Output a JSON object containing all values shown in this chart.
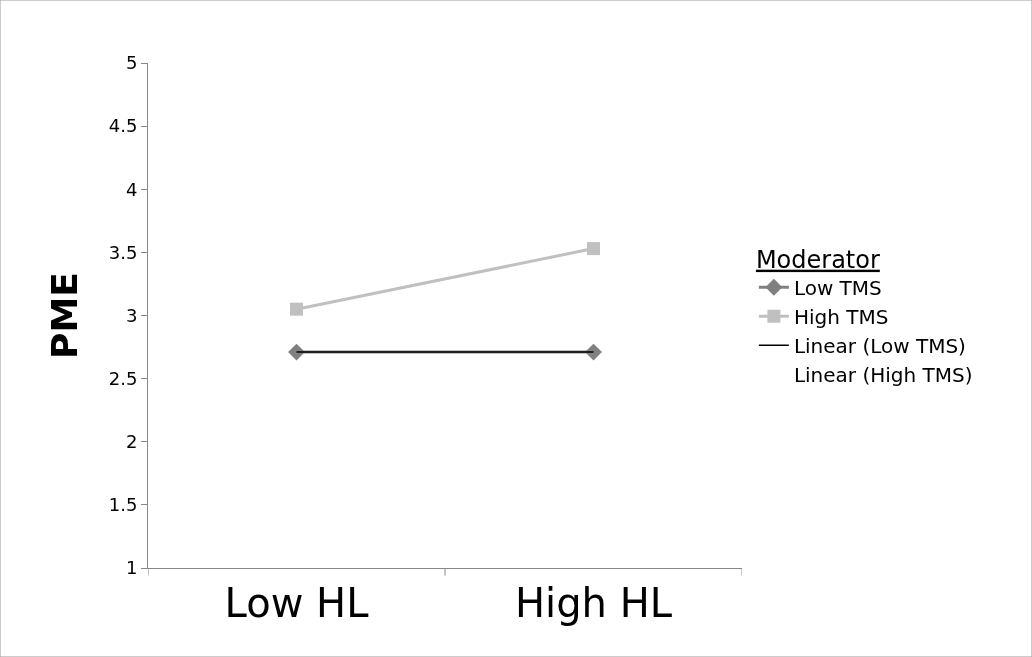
{
  "chart_data": {
    "type": "line",
    "ylabel": "PME",
    "legend_title": "Moderator",
    "categories": [
      "Low HL",
      "High HL"
    ],
    "series": [
      {
        "name": "Low TMS",
        "color": "#808080",
        "values": [
          2.71,
          2.71
        ],
        "marker": "diamond"
      },
      {
        "name": "High TMS",
        "color": "#c0c0c0",
        "values": [
          3.05,
          3.53
        ],
        "marker": "square"
      },
      {
        "name": "Linear (Low TMS)",
        "color": "#000000",
        "values": [
          2.71,
          2.71
        ],
        "marker": "none"
      },
      {
        "name": "Linear (High TMS)",
        "values": [
          null,
          null
        ],
        "marker": "none"
      }
    ],
    "ylim": [
      1,
      5
    ],
    "yticks": [
      1,
      1.5,
      2,
      2.5,
      3,
      3.5,
      4,
      4.5,
      5
    ],
    "legend": "right"
  }
}
